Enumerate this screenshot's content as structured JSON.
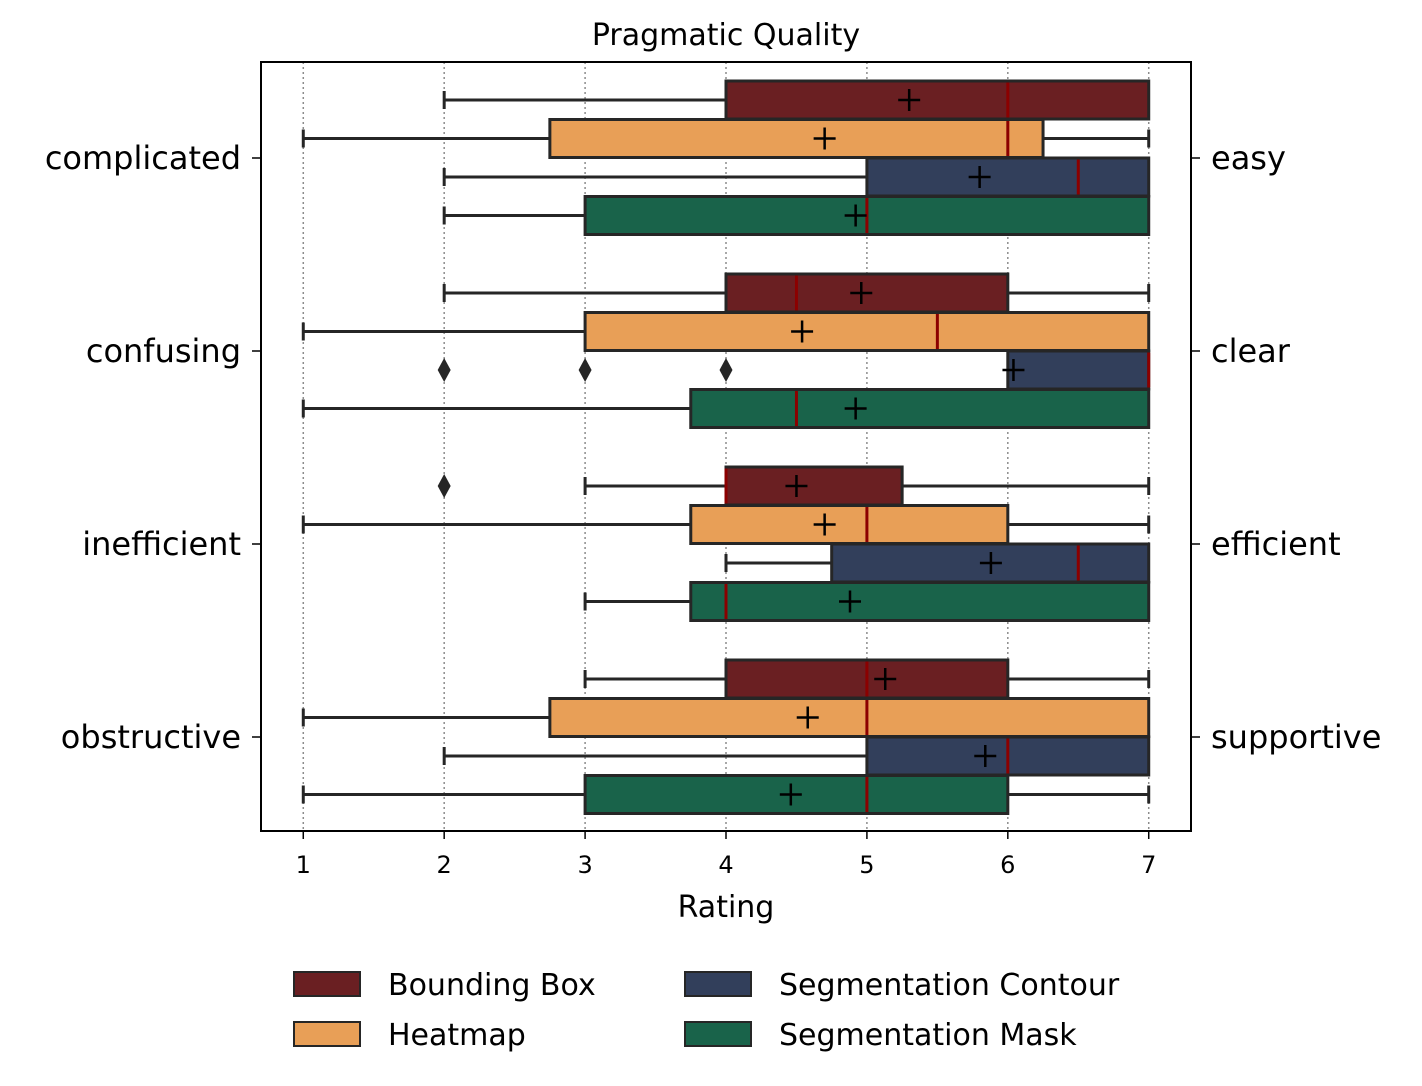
{
  "chart_data": {
    "type": "boxplot",
    "orientation": "horizontal",
    "title": "Pragmatic Quality",
    "xlabel": "Rating",
    "xlim": [
      0.7,
      7.3
    ],
    "xticks": [
      "1",
      "2",
      "3",
      "4",
      "5",
      "6",
      "7"
    ],
    "grid": "vertical dotted",
    "categories_left": [
      "complicated",
      "confusing",
      "inefficient",
      "obstructive"
    ],
    "categories_right": [
      "easy",
      "clear",
      "efficient",
      "supportive"
    ],
    "median_color": "#8b0000",
    "series": [
      {
        "name": "Bounding Box",
        "color": "#6a1f22"
      },
      {
        "name": "Heatmap",
        "color": "#e89f57"
      },
      {
        "name": "Segmentation Contour",
        "color": "#323f5b"
      },
      {
        "name": "Segmentation Mask",
        "color": "#19634a"
      }
    ],
    "groups": [
      {
        "boxes": [
          {
            "whisker_low": 2,
            "q1": 4,
            "median": 6,
            "q3": 7,
            "whisker_high": 7,
            "mean": 5.3,
            "outliers": []
          },
          {
            "whisker_low": 1,
            "q1": 2.75,
            "median": 6,
            "q3": 6.25,
            "whisker_high": 7,
            "mean": 4.7,
            "outliers": []
          },
          {
            "whisker_low": 2,
            "q1": 5,
            "median": 6.5,
            "q3": 7,
            "whisker_high": 7,
            "mean": 5.8,
            "outliers": []
          },
          {
            "whisker_low": 2,
            "q1": 3,
            "median": 5,
            "q3": 7,
            "whisker_high": 7,
            "mean": 4.92,
            "outliers": []
          }
        ]
      },
      {
        "boxes": [
          {
            "whisker_low": 2,
            "q1": 4,
            "median": 4.5,
            "q3": 6,
            "whisker_high": 7,
            "mean": 4.96,
            "outliers": []
          },
          {
            "whisker_low": 1,
            "q1": 3,
            "median": 5.5,
            "q3": 7,
            "whisker_high": 7,
            "mean": 4.54,
            "outliers": []
          },
          {
            "whisker_low": 6,
            "q1": 6,
            "median": 7,
            "q3": 7,
            "whisker_high": 7,
            "mean": 6.04,
            "outliers": [
              2,
              3,
              4
            ]
          },
          {
            "whisker_low": 1,
            "q1": 3.75,
            "median": 4.5,
            "q3": 7,
            "whisker_high": 7,
            "mean": 4.92,
            "outliers": []
          }
        ]
      },
      {
        "boxes": [
          {
            "whisker_low": 3,
            "q1": 4,
            "median": 4,
            "q3": 5.25,
            "whisker_high": 7,
            "mean": 4.5,
            "outliers": [
              2
            ]
          },
          {
            "whisker_low": 1,
            "q1": 3.75,
            "median": 5,
            "q3": 6,
            "whisker_high": 7,
            "mean": 4.7,
            "outliers": []
          },
          {
            "whisker_low": 4,
            "q1": 4.75,
            "median": 6.5,
            "q3": 7,
            "whisker_high": 7,
            "mean": 5.88,
            "outliers": []
          },
          {
            "whisker_low": 3,
            "q1": 3.75,
            "median": 4,
            "q3": 7,
            "whisker_high": 7,
            "mean": 4.88,
            "outliers": []
          }
        ]
      },
      {
        "boxes": [
          {
            "whisker_low": 3,
            "q1": 4,
            "median": 5,
            "q3": 6,
            "whisker_high": 7,
            "mean": 5.13,
            "outliers": []
          },
          {
            "whisker_low": 1,
            "q1": 2.75,
            "median": 5,
            "q3": 7,
            "whisker_high": 7,
            "mean": 4.58,
            "outliers": []
          },
          {
            "whisker_low": 2,
            "q1": 5,
            "median": 6,
            "q3": 7,
            "whisker_high": 7,
            "mean": 5.84,
            "outliers": []
          },
          {
            "whisker_low": 1,
            "q1": 3,
            "median": 5,
            "q3": 6,
            "whisker_high": 7,
            "mean": 4.46,
            "outliers": []
          }
        ]
      }
    ]
  }
}
